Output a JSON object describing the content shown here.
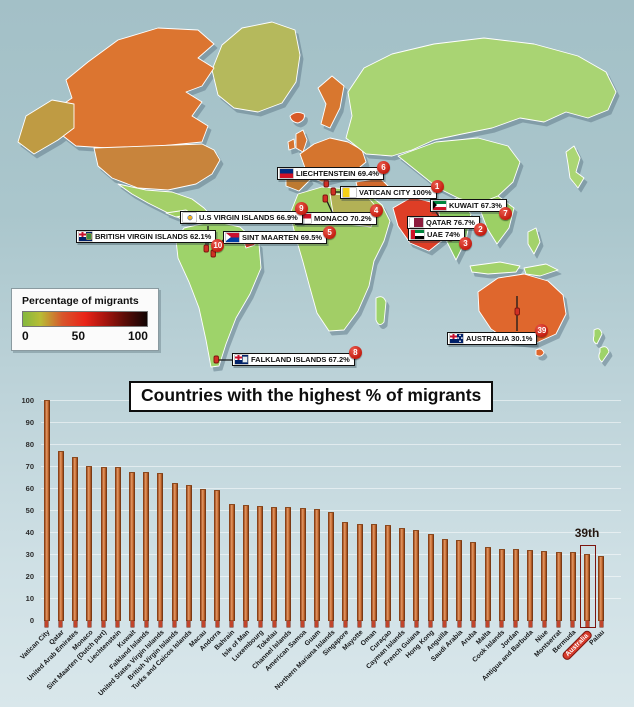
{
  "map": {
    "legend": {
      "title": "Percentage of migrants",
      "tick_labels": [
        "0",
        "50",
        "100"
      ]
    },
    "callouts": [
      {
        "rank": "1",
        "name": "VATICAN CITY",
        "value": "100%",
        "flag": "vatican-city-flag"
      },
      {
        "rank": "2",
        "name": "QATAR",
        "value": "76.7%",
        "flag": "qatar-flag"
      },
      {
        "rank": "3",
        "name": "UAE",
        "value": "74%",
        "flag": "uae-flag"
      },
      {
        "rank": "4",
        "name": "MONACO",
        "value": "70.2%",
        "flag": "monaco-flag"
      },
      {
        "rank": "5",
        "name": "SINT MAARTEN",
        "value": "69.5%",
        "flag": "sint-maarten-flag"
      },
      {
        "rank": "6",
        "name": "LIECHTENSTEIN",
        "value": "69.4%",
        "flag": "liechtenstein-flag"
      },
      {
        "rank": "7",
        "name": "KUWAIT",
        "value": "67.3%",
        "flag": "kuwait-flag"
      },
      {
        "rank": "8",
        "name": "FALKLAND ISLANDS",
        "value": "67.2%",
        "flag": "falkland-islands-flag"
      },
      {
        "rank": "9",
        "name": "U.S VIRGIN ISLANDS",
        "value": "66.9%",
        "flag": "us-virgin-islands-flag"
      },
      {
        "rank": "10",
        "name": "BRITISH VIRGIN ISLANDS",
        "value": "62.1%",
        "flag": "british-virgin-islands-flag"
      },
      {
        "rank": "39",
        "name": "AUSTRALIA",
        "value": "30.1%",
        "flag": "australia-flag"
      }
    ]
  },
  "chart": {
    "title": "Countries with the highest % of migrants",
    "annotation": "39th"
  },
  "chart_data": {
    "type": "bar",
    "title": "Countries with the highest % of migrants",
    "categories": [
      "Vatican City",
      "Qatar",
      "United Arab Emirates",
      "Monaco",
      "Sint Maarten (Dutch part)",
      "Liechtenstein",
      "Kuwait",
      "Falkland Islands",
      "United States Virgin Islands",
      "British Virgin Islands",
      "Turks and Caicos Islands",
      "Macau",
      "Andorra",
      "Bahrain",
      "Isle of Man",
      "Luxembourg",
      "Tokelau",
      "Channel Islands",
      "American Samoa",
      "Guam",
      "Northern Mariana Islands",
      "Singapore",
      "Mayotte",
      "Oman",
      "Curaçao",
      "Cayman Islands",
      "French Guiana",
      "Hong Kong",
      "Anguilla",
      "Saudi Arabia",
      "Aruba",
      "Malta",
      "Cook Islands",
      "Jordan",
      "Antigua and Barbuda",
      "Niue",
      "Montserrat",
      "Bermuda",
      "Australia",
      "Palau"
    ],
    "values": [
      100,
      76.7,
      74,
      70.2,
      69.5,
      69.4,
      67.3,
      67.2,
      66.9,
      62.1,
      61.2,
      59.4,
      59,
      52.6,
      52.1,
      51.6,
      51.4,
      51.3,
      50.9,
      50.3,
      49.1,
      44.6,
      43.6,
      43.6,
      43.1,
      41.8,
      41.1,
      39.2,
      37,
      36.5,
      35.5,
      33.2,
      32.1,
      32.1,
      31.7,
      31.2,
      30.9,
      30.9,
      30.1,
      28.9
    ],
    "ylim": [
      0,
      100
    ],
    "yticks": [
      0,
      10,
      20,
      30,
      40,
      50,
      60,
      70,
      80,
      90,
      100
    ],
    "grid": "horizontal",
    "bar_color": "#c06a32",
    "highlight": {
      "category": "Australia",
      "annotation": "39th",
      "rank": 39
    }
  }
}
